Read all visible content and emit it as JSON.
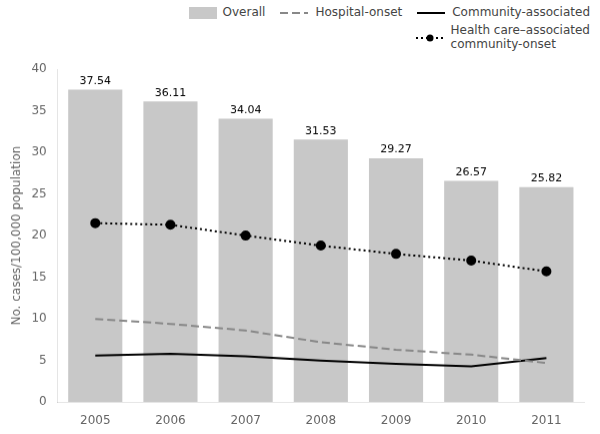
{
  "chart_data": {
    "type": "bar",
    "categories": [
      "2005",
      "2006",
      "2007",
      "2008",
      "2009",
      "2010",
      "2011"
    ],
    "ylabel": "No. cases/100,000 population",
    "ylim": [
      0,
      40
    ],
    "yticks": [
      0,
      5,
      10,
      15,
      20,
      25,
      30,
      35,
      40
    ],
    "grid": false,
    "legend": "upper right",
    "series": [
      {
        "name": "Overall",
        "type": "bar",
        "color": "#c8c8c8",
        "data_labels": true,
        "values": [
          37.54,
          36.11,
          34.04,
          31.53,
          29.27,
          26.57,
          25.82
        ]
      },
      {
        "name": "Hospital-onset",
        "type": "line",
        "color": "#888888",
        "line_style": "dashed",
        "values": [
          10.0,
          9.4,
          8.6,
          7.2,
          6.3,
          5.7,
          4.7
        ]
      },
      {
        "name": "Community-associated",
        "type": "line",
        "color": "#000000",
        "line_style": "solid",
        "values": [
          5.6,
          5.8,
          5.5,
          5.0,
          4.6,
          4.3,
          5.3
        ]
      },
      {
        "name": "Health care–associated\ncommunity-onset",
        "type": "line",
        "color": "#000000",
        "line_style": "dotted",
        "marker": "circle",
        "values": [
          21.5,
          21.3,
          20.0,
          18.8,
          17.8,
          17.0,
          15.7
        ]
      }
    ]
  }
}
